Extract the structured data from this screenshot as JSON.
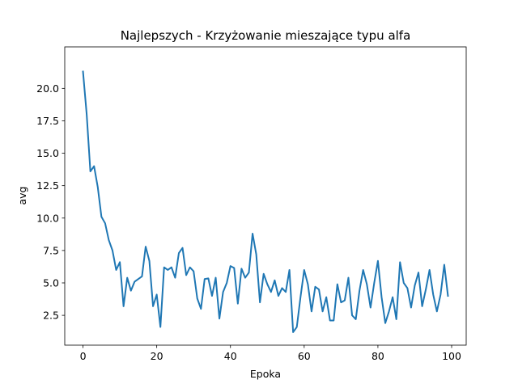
{
  "chart_data": {
    "type": "line",
    "title": "Najlepszych - Krzyżowanie mieszające typu alfa",
    "xlabel": "Epoka",
    "ylabel": "avg",
    "xlim": [
      -4.95,
      103.95
    ],
    "ylim": [
      0.2,
      23.2
    ],
    "xticks": [
      0,
      20,
      40,
      60,
      80,
      100
    ],
    "xtick_labels": [
      "0",
      "20",
      "40",
      "60",
      "80",
      "100"
    ],
    "yticks": [
      2.5,
      5.0,
      7.5,
      10.0,
      12.5,
      15.0,
      17.5,
      20.0
    ],
    "ytick_labels": [
      "2.5",
      "5.0",
      "7.5",
      "10.0",
      "12.5",
      "15.0",
      "17.5",
      "20.0"
    ],
    "grid": false,
    "color": "#1f77b4",
    "series": [
      {
        "name": "",
        "x": [
          0,
          1,
          2,
          3,
          4,
          5,
          6,
          7,
          8,
          9,
          10,
          11,
          12,
          13,
          14,
          15,
          16,
          17,
          18,
          19,
          20,
          21,
          22,
          23,
          24,
          25,
          26,
          27,
          28,
          29,
          30,
          31,
          32,
          33,
          34,
          35,
          36,
          37,
          38,
          39,
          40,
          41,
          42,
          43,
          44,
          45,
          46,
          47,
          48,
          49,
          50,
          51,
          52,
          53,
          54,
          55,
          56,
          57,
          58,
          59,
          60,
          61,
          62,
          63,
          64,
          65,
          66,
          67,
          68,
          69,
          70,
          71,
          72,
          73,
          74,
          75,
          76,
          77,
          78,
          79,
          80,
          81,
          82,
          83,
          84,
          85,
          86,
          87,
          88,
          89,
          90,
          91,
          92,
          93,
          94,
          95,
          96,
          97,
          98,
          99
        ],
        "values": [
          21.3,
          18.0,
          13.6,
          14.0,
          12.4,
          10.1,
          9.6,
          8.3,
          7.5,
          6.0,
          6.6,
          3.2,
          5.4,
          4.4,
          5.1,
          5.3,
          5.5,
          7.8,
          6.7,
          3.2,
          4.1,
          1.6,
          6.2,
          6.0,
          6.2,
          5.4,
          7.3,
          7.7,
          5.6,
          6.2,
          5.9,
          3.8,
          3.0,
          5.3,
          5.35,
          4.0,
          5.4,
          2.25,
          4.3,
          5.0,
          6.3,
          6.15,
          3.4,
          6.1,
          5.4,
          5.8,
          8.8,
          7.2,
          3.5,
          5.7,
          4.9,
          4.3,
          5.2,
          4.0,
          4.6,
          4.3,
          6.0,
          1.2,
          1.6,
          3.9,
          6.0,
          4.9,
          2.8,
          4.7,
          4.5,
          2.8,
          3.9,
          2.1,
          2.1,
          4.9,
          3.5,
          3.65,
          5.4,
          2.5,
          2.2,
          4.4,
          6.0,
          4.9,
          3.1,
          5.0,
          6.7,
          3.9,
          1.9,
          2.8,
          3.9,
          2.2,
          6.6,
          5.0,
          4.6,
          3.1,
          4.8,
          5.8,
          3.2,
          4.5,
          6.0,
          4.1,
          2.8,
          4.1,
          6.4,
          4.0
        ]
      }
    ]
  }
}
